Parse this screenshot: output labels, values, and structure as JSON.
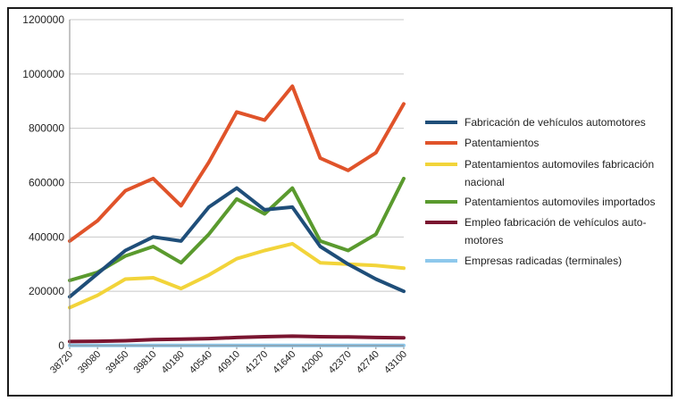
{
  "chart_data": {
    "type": "line",
    "x": [
      "38720",
      "39080",
      "39450",
      "39810",
      "40180",
      "40540",
      "40910",
      "41270",
      "41640",
      "42000",
      "42370",
      "42740",
      "43100"
    ],
    "ylim": [
      0,
      1200000
    ],
    "yticks": [
      "0",
      "200000",
      "400000",
      "600000",
      "800000",
      "1000000",
      "1200000"
    ],
    "grid": true,
    "legend_position": "right",
    "series": [
      {
        "name": "Fabricación de vehículos automotores",
        "color": "#1f4e79",
        "values": [
          180000,
          265000,
          350000,
          400000,
          385000,
          510000,
          580000,
          500000,
          510000,
          365000,
          300000,
          245000,
          200000
        ]
      },
      {
        "name": "Patentamientos",
        "color": "#e0532a",
        "values": [
          385000,
          460000,
          570000,
          615000,
          515000,
          675000,
          860000,
          830000,
          955000,
          690000,
          645000,
          710000,
          890000
        ]
      },
      {
        "name": "Patentamientos automoviles fabricación nacional",
        "color": "#f2d43a",
        "values": [
          140000,
          185000,
          245000,
          250000,
          210000,
          260000,
          320000,
          350000,
          375000,
          305000,
          300000,
          295000,
          285000
        ]
      },
      {
        "name": "Patentamientos automoviles importados",
        "color": "#5a9a2e",
        "values": [
          240000,
          270000,
          330000,
          365000,
          305000,
          410000,
          540000,
          485000,
          580000,
          385000,
          350000,
          410000,
          615000
        ]
      },
      {
        "name": "Empleo fabricación de vehículos automotores",
        "color": "#7a1530",
        "values": [
          15000,
          16000,
          18000,
          22000,
          24000,
          26000,
          30000,
          33000,
          35000,
          33000,
          32000,
          30000,
          29000
        ]
      },
      {
        "name": "Empresas radicadas (terminales)",
        "color": "#8ec8ec",
        "values": [
          1000,
          1000,
          1000,
          1000,
          1000,
          1000,
          1000,
          1000,
          1000,
          1000,
          1000,
          1000,
          1000
        ]
      }
    ]
  }
}
